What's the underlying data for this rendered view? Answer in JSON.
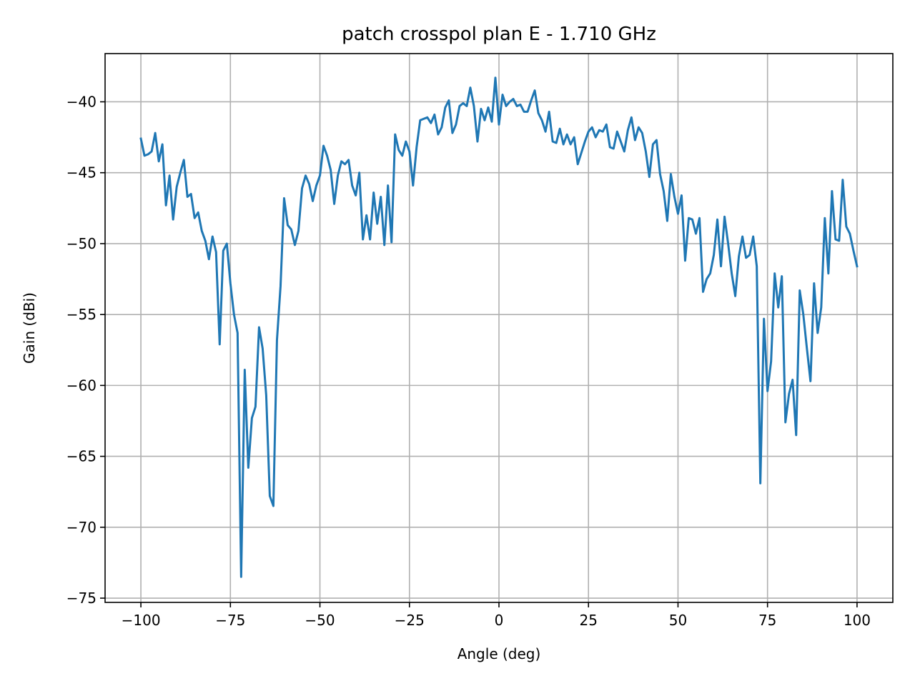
{
  "chart_data": {
    "type": "line",
    "title": "patch crosspol plan E - 1.710 GHz",
    "xlabel": "Angle (deg)",
    "ylabel": "Gain (dBi)",
    "xlim": [
      -110,
      110
    ],
    "ylim": [
      -75.3,
      -36.6
    ],
    "grid": true,
    "line_color": "#1f77b4",
    "x_ticks": [
      -100,
      -75,
      -50,
      -25,
      0,
      25,
      50,
      75,
      100
    ],
    "x_tick_labels": [
      "−100",
      "−75",
      "−50",
      "−25",
      "0",
      "25",
      "50",
      "75",
      "100"
    ],
    "y_ticks": [
      -40,
      -45,
      -50,
      -55,
      -60,
      -65,
      -70,
      -75
    ],
    "y_tick_labels": [
      "−40",
      "−45",
      "−50",
      "−55",
      "−60",
      "−65",
      "−70",
      "−75"
    ],
    "series": [
      {
        "x": [
          -100,
          -99,
          -98,
          -97,
          -96,
          -95,
          -94,
          -93,
          -92,
          -91,
          -90,
          -89,
          -88,
          -87,
          -86,
          -85,
          -84,
          -83,
          -82,
          -81,
          -80,
          -79,
          -78,
          -77,
          -76,
          -75,
          -74,
          -73,
          -72,
          -71,
          -70,
          -69,
          -68,
          -67,
          -66,
          -65,
          -64,
          -63,
          -62,
          -61,
          -60,
          -59,
          -58,
          -57,
          -56,
          -55,
          -54,
          -53,
          -52,
          -51,
          -50,
          -49,
          -48,
          -47,
          -46,
          -45,
          -44,
          -43,
          -42,
          -41,
          -40,
          -39,
          -38,
          -37,
          -36,
          -35,
          -34,
          -33,
          -32,
          -31,
          -30,
          -29,
          -28,
          -27,
          -26,
          -25,
          -24,
          -23,
          -22,
          -21,
          -20,
          -19,
          -18,
          -17,
          -16,
          -15,
          -14,
          -13,
          -12,
          -11,
          -10,
          -9,
          -8,
          -7,
          -6,
          -5,
          -4,
          -3,
          -2,
          -1,
          0,
          1,
          2,
          3,
          4,
          5,
          6,
          7,
          8,
          9,
          10,
          11,
          12,
          13,
          14,
          15,
          16,
          17,
          18,
          19,
          20,
          21,
          22,
          23,
          24,
          25,
          26,
          27,
          28,
          29,
          30,
          31,
          32,
          33,
          34,
          35,
          36,
          37,
          38,
          39,
          40,
          41,
          42,
          43,
          44,
          45,
          46,
          47,
          48,
          49,
          50,
          51,
          52,
          53,
          54,
          55,
          56,
          57,
          58,
          59,
          60,
          61,
          62,
          63,
          64,
          65,
          66,
          67,
          68,
          69,
          70,
          71,
          72,
          73,
          74,
          75,
          76,
          77,
          78,
          79,
          80,
          81,
          82,
          83,
          84,
          85,
          86,
          87,
          88,
          89,
          90,
          91,
          92,
          93,
          94,
          95,
          96,
          97,
          98,
          99,
          100
        ],
        "values": [
          -42.6,
          -43.8,
          -43.7,
          -43.5,
          -42.2,
          -44.2,
          -43.0,
          -47.3,
          -45.2,
          -48.3,
          -46.0,
          -45.0,
          -44.1,
          -46.7,
          -46.5,
          -48.2,
          -47.8,
          -49.1,
          -49.8,
          -51.1,
          -49.5,
          -50.6,
          -57.1,
          -50.5,
          -50.0,
          -52.8,
          -55.0,
          -56.3,
          -73.5,
          -58.9,
          -65.8,
          -62.3,
          -61.5,
          -55.9,
          -57.4,
          -60.7,
          -67.8,
          -68.5,
          -56.8,
          -53.0,
          -46.8,
          -48.7,
          -49.0,
          -50.1,
          -49.1,
          -46.1,
          -45.2,
          -45.8,
          -47.0,
          -45.9,
          -45.2,
          -43.1,
          -43.8,
          -44.8,
          -47.2,
          -45.2,
          -44.2,
          -44.4,
          -44.1,
          -45.9,
          -46.6,
          -45.0,
          -49.7,
          -48.0,
          -49.7,
          -46.4,
          -48.6,
          -46.7,
          -50.1,
          -45.9,
          -49.9,
          -42.3,
          -43.4,
          -43.8,
          -42.8,
          -43.5,
          -45.9,
          -43.2,
          -41.3,
          -41.2,
          -41.1,
          -41.5,
          -40.9,
          -42.3,
          -41.8,
          -40.4,
          -39.9,
          -42.2,
          -41.6,
          -40.3,
          -40.1,
          -40.3,
          -39.0,
          -40.3,
          -42.8,
          -40.5,
          -41.3,
          -40.4,
          -41.4,
          -38.3,
          -41.6,
          -39.5,
          -40.3,
          -40.0,
          -39.8,
          -40.3,
          -40.2,
          -40.7,
          -40.7,
          -39.9,
          -39.2,
          -40.8,
          -41.3,
          -42.1,
          -40.7,
          -42.8,
          -42.9,
          -41.9,
          -43.0,
          -42.3,
          -43.0,
          -42.5,
          -44.4,
          -43.6,
          -42.8,
          -42.1,
          -41.8,
          -42.5,
          -42.0,
          -42.1,
          -41.6,
          -43.2,
          -43.3,
          -42.1,
          -42.8,
          -43.5,
          -42.0,
          -41.1,
          -42.7,
          -41.8,
          -42.2,
          -43.5,
          -45.3,
          -43.0,
          -42.7,
          -45.1,
          -46.3,
          -48.4,
          -45.1,
          -46.7,
          -47.9,
          -46.6,
          -51.2,
          -48.2,
          -48.3,
          -49.3,
          -48.2,
          -53.4,
          -52.5,
          -52.1,
          -50.8,
          -48.3,
          -51.6,
          -48.1,
          -50.0,
          -52.1,
          -53.7,
          -50.9,
          -49.5,
          -51.0,
          -50.8,
          -49.5,
          -51.6,
          -66.9,
          -55.3,
          -60.4,
          -58.3,
          -52.1,
          -54.5,
          -52.3,
          -62.6,
          -60.6,
          -59.6,
          -63.5,
          -53.3,
          -55.0,
          -57.4,
          -59.7,
          -52.8,
          -56.3,
          -54.5,
          -48.2,
          -52.1,
          -46.3,
          -49.7,
          -49.8,
          -45.5,
          -48.8,
          -49.3,
          -50.5,
          -51.6
        ]
      }
    ]
  }
}
